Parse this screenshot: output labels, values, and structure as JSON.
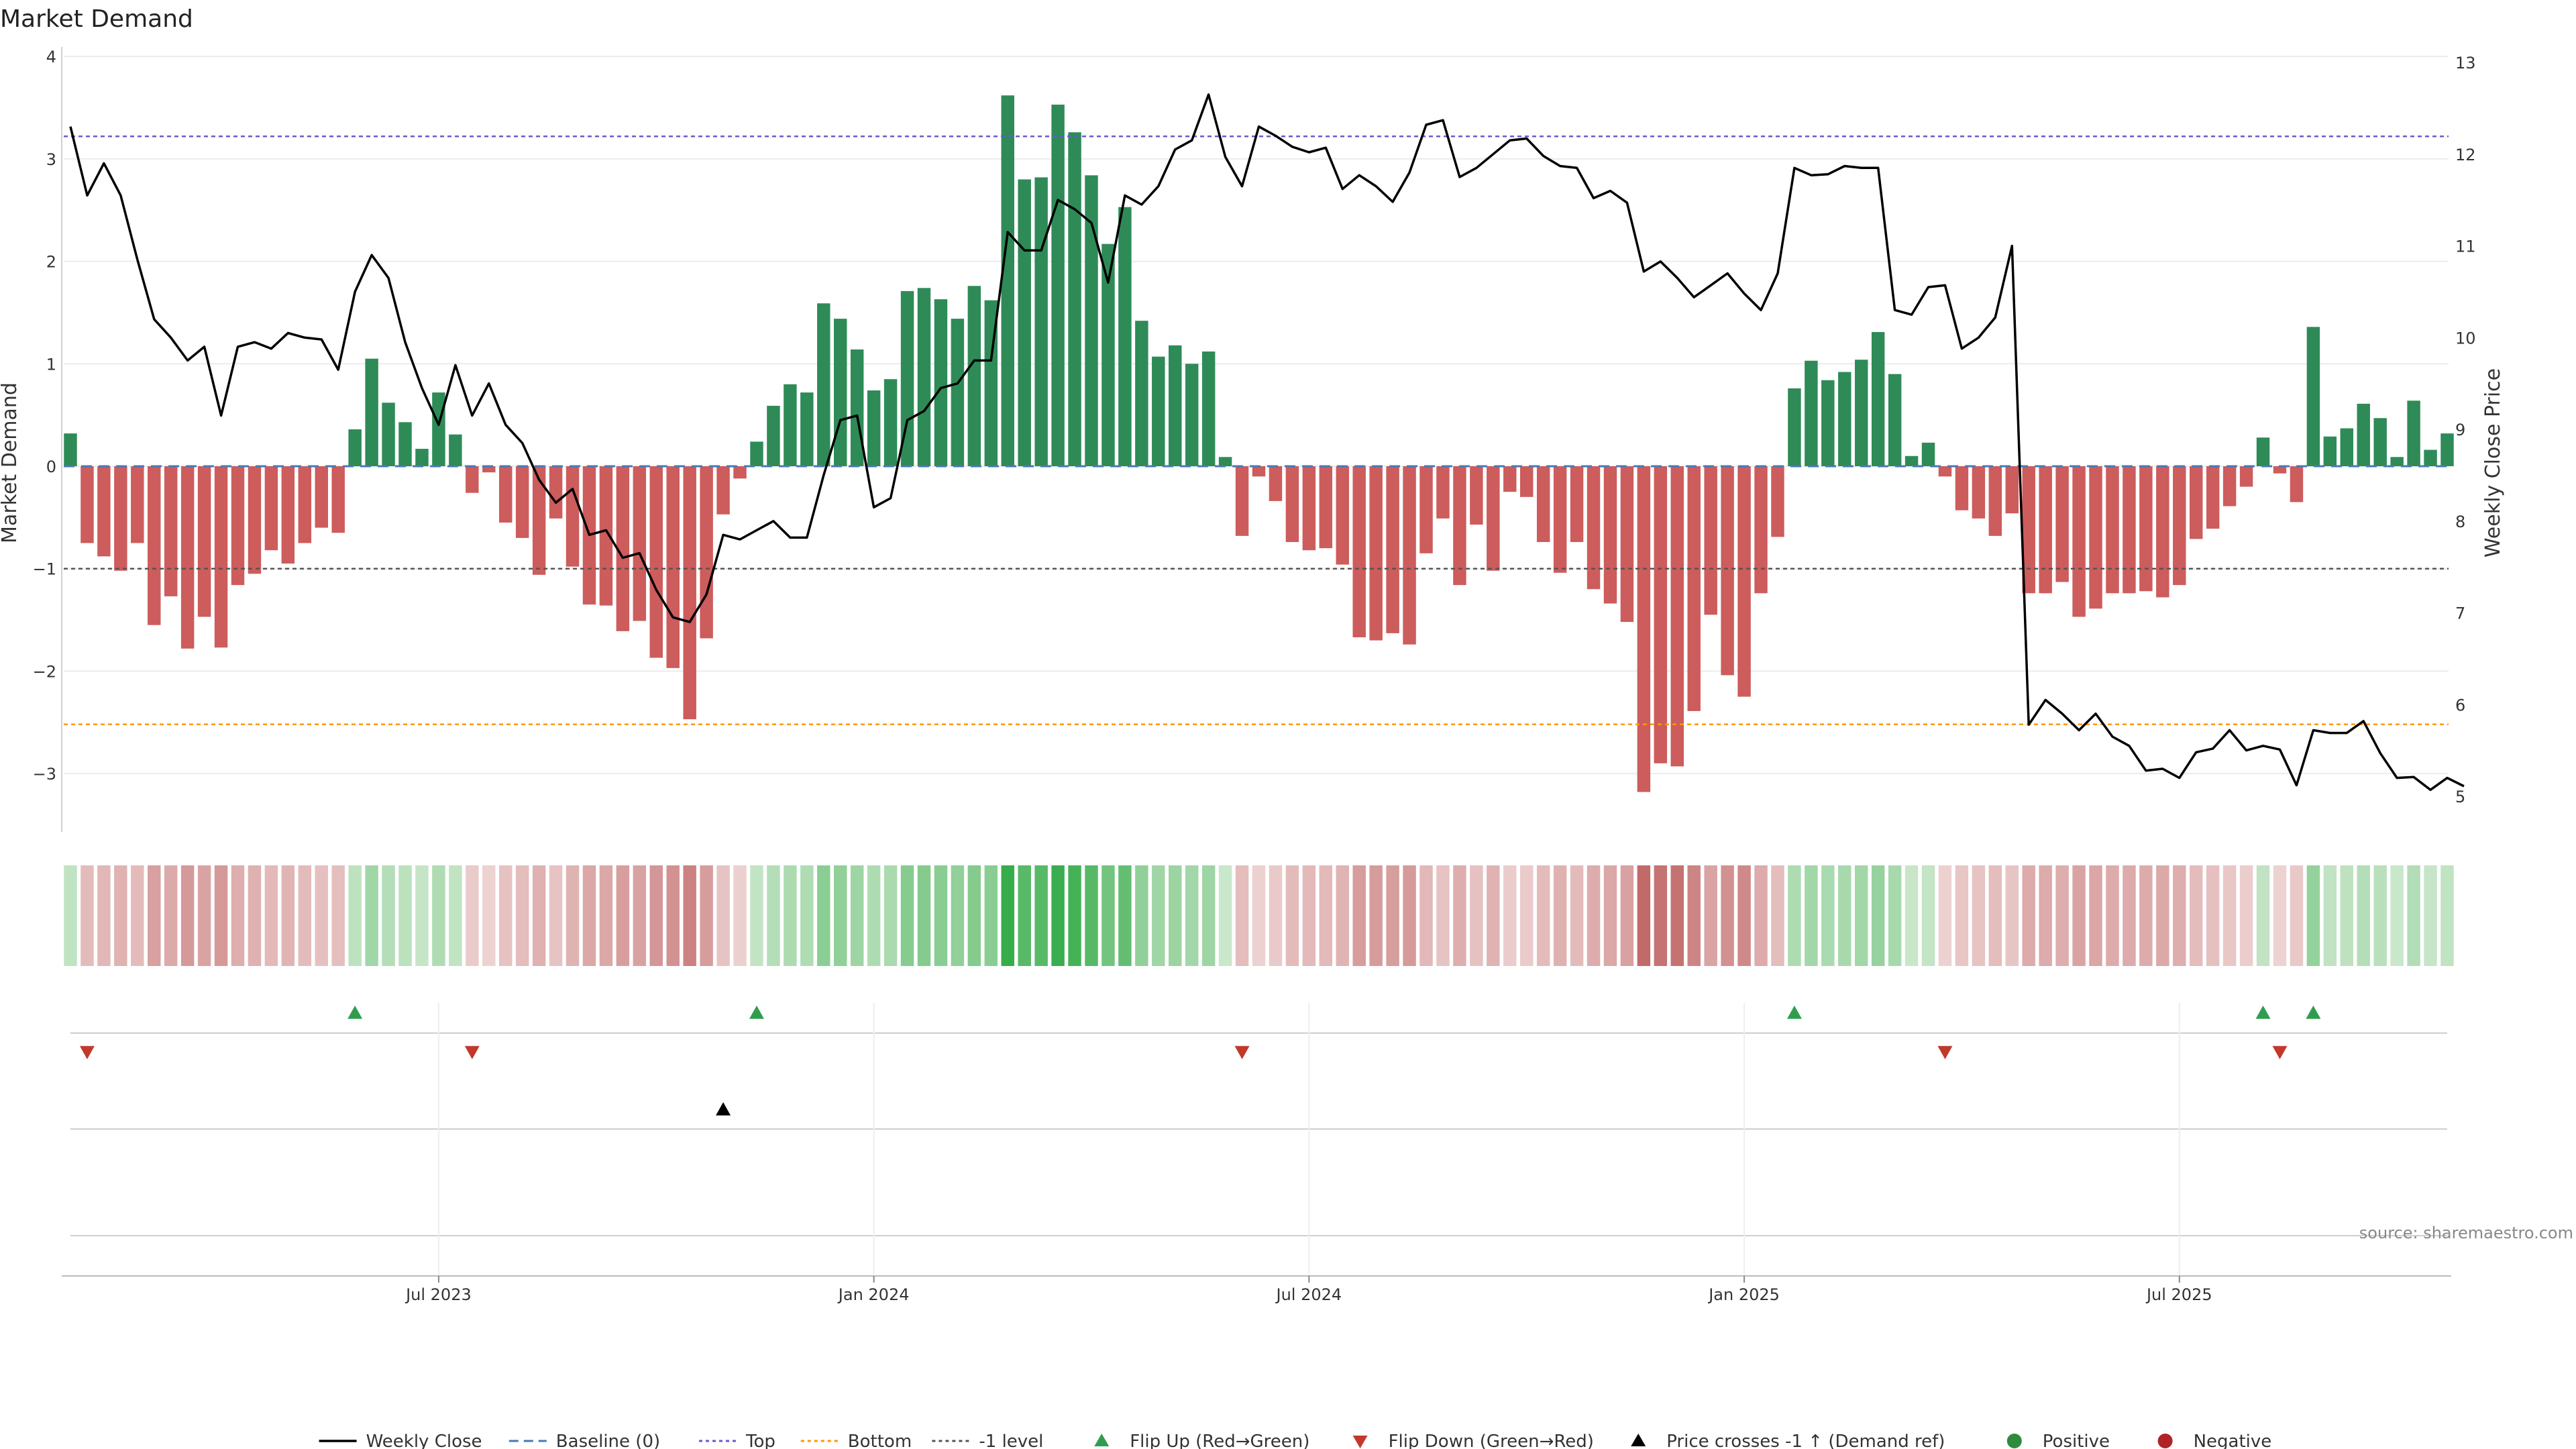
{
  "chart_data": {
    "type": "bar",
    "title": "Market Demand",
    "ylabel_left": "Market Demand",
    "ylabel_right": "Weekly Close Price",
    "ylim_left": [
      -3.6,
      4
    ],
    "yticks_left": [
      "4",
      "3",
      "2",
      "1",
      "0",
      "−1",
      "−2",
      "−3"
    ],
    "ylim_right": [
      4.7,
      13.2
    ],
    "yticks_right": [
      "13",
      "12",
      "11",
      "10",
      "9",
      "8",
      "7",
      "6",
      "5"
    ],
    "xticks": [
      {
        "label": "Jul 2023",
        "week": 22
      },
      {
        "label": "Jan 2024",
        "week": 48
      },
      {
        "label": "Jul 2024",
        "week": 74
      },
      {
        "label": "Jan 2025",
        "week": 100
      },
      {
        "label": "Jul 2025",
        "week": 126
      }
    ],
    "reference_lines": {
      "top": 3.22,
      "bottom": -2.52,
      "minus_one": -1,
      "baseline": 0
    },
    "demand": [
      0.32,
      -0.75,
      -0.88,
      -1.02,
      -0.75,
      -1.55,
      -1.27,
      -1.78,
      -1.47,
      -1.77,
      -1.16,
      -1.05,
      -0.82,
      -0.95,
      -0.75,
      -0.6,
      -0.65,
      0.36,
      1.05,
      0.62,
      0.43,
      0.17,
      0.72,
      0.31,
      -0.26,
      -0.06,
      -0.55,
      -0.7,
      -1.06,
      -0.51,
      -0.98,
      -1.35,
      -1.36,
      -1.61,
      -1.51,
      -1.87,
      -1.97,
      -2.47,
      -1.68,
      -0.47,
      -0.12,
      0.24,
      0.59,
      0.8,
      0.72,
      1.59,
      1.44,
      1.14,
      0.74,
      0.85,
      1.71,
      1.74,
      1.63,
      1.44,
      1.76,
      1.62,
      3.62,
      2.8,
      2.82,
      3.53,
      3.26,
      2.84,
      2.17,
      2.53,
      1.42,
      1.07,
      1.18,
      1.0,
      1.12,
      0.09,
      -0.68,
      -0.1,
      -0.34,
      -0.74,
      -0.82,
      -0.8,
      -0.96,
      -1.67,
      -1.7,
      -1.63,
      -1.74,
      -0.85,
      -0.51,
      -1.16,
      -0.57,
      -1.02,
      -0.25,
      -0.3,
      -0.74,
      -1.04,
      -0.74,
      -1.2,
      -1.34,
      -1.52,
      -3.18,
      -2.9,
      -2.93,
      -2.39,
      -1.45,
      -2.04,
      -2.25,
      -1.24,
      -0.69,
      0.76,
      1.03,
      0.84,
      0.92,
      1.04,
      1.31,
      0.9,
      0.1,
      0.23,
      -0.1,
      -0.43,
      -0.51,
      -0.68,
      -0.46,
      -1.24,
      -1.24,
      -1.13,
      -1.47,
      -1.39,
      -1.24,
      -1.24,
      -1.22,
      -1.28,
      -1.16,
      -0.71,
      -0.61,
      -0.39,
      -0.2,
      0.28,
      -0.07,
      -0.35,
      1.36,
      0.29,
      0.37,
      0.61,
      0.47,
      0.09,
      0.64,
      0.16,
      0.32
    ],
    "price": [
      12.3,
      11.55,
      11.9,
      11.55,
      10.85,
      10.2,
      10.0,
      9.75,
      9.9,
      9.15,
      9.9,
      9.95,
      9.88,
      10.05,
      10.0,
      9.98,
      9.65,
      10.5,
      10.9,
      10.65,
      9.95,
      9.45,
      9.05,
      9.7,
      9.15,
      9.5,
      9.05,
      8.85,
      8.45,
      8.2,
      8.35,
      7.85,
      7.9,
      7.6,
      7.65,
      7.25,
      6.95,
      6.9,
      7.2,
      7.85,
      7.8,
      7.9,
      8.0,
      7.82,
      7.82,
      8.5,
      9.1,
      9.15,
      8.15,
      8.25,
      9.1,
      9.2,
      9.45,
      9.5,
      9.75,
      9.75,
      11.15,
      10.95,
      10.95,
      11.5,
      11.4,
      11.25,
      10.6,
      11.55,
      11.45,
      11.65,
      12.05,
      12.15,
      12.65,
      11.97,
      11.65,
      12.3,
      12.2,
      12.08,
      12.02,
      12.07,
      11.62,
      11.77,
      11.65,
      11.48,
      11.8,
      12.32,
      12.37,
      11.75,
      11.85,
      12.0,
      12.15,
      12.17,
      11.98,
      11.87,
      11.85,
      11.52,
      11.6,
      11.47,
      10.72,
      10.83,
      10.65,
      10.44,
      10.57,
      10.7,
      10.48,
      10.3,
      10.7,
      11.85,
      11.77,
      11.78,
      11.87,
      11.85,
      11.85,
      10.3,
      10.25,
      10.55,
      10.57,
      9.88,
      10.0,
      10.22,
      11.0,
      5.78,
      6.05,
      5.9,
      5.72,
      5.9,
      5.65,
      5.55,
      5.28,
      5.3,
      5.2,
      5.48,
      5.52,
      5.72,
      5.5,
      5.55,
      5.51,
      5.12,
      5.72,
      5.69,
      5.69,
      5.82,
      5.47,
      5.2,
      5.21,
      5.07,
      5.2,
      5.11
    ],
    "flip_up_weeks": [
      17,
      41,
      103,
      131,
      134
    ],
    "flip_down_weeks": [
      1,
      24,
      70,
      112,
      132
    ],
    "price_cross_weeks": [
      39
    ],
    "source_text": "source: sharemaestro.com",
    "legend": [
      {
        "label": "Weekly Close",
        "kind": "line",
        "color": "#000000"
      },
      {
        "label": "Baseline (0)",
        "kind": "dash",
        "color": "#4a78b5"
      },
      {
        "label": "Top",
        "kind": "dot",
        "color": "#6a5acd"
      },
      {
        "label": "Bottom",
        "kind": "dot",
        "color": "#ff9900"
      },
      {
        "label": "-1 level",
        "kind": "dot",
        "color": "#555555"
      },
      {
        "label": "Flip Up (Red→Green)",
        "kind": "tri-up",
        "color": "#2e9e4e"
      },
      {
        "label": "Flip Down (Green→Red)",
        "kind": "tri-down",
        "color": "#c0392b"
      },
      {
        "label": "Price crosses -1 ↑ (Demand ref)",
        "kind": "tri-up",
        "color": "#000000"
      },
      {
        "label": "Positive",
        "kind": "circle",
        "color": "#2e8b3c"
      },
      {
        "label": "Negative",
        "kind": "circle",
        "color": "#b02428"
      }
    ],
    "colors": {
      "positive": "#2e8b57",
      "negative": "#cd5c5c",
      "price": "#000000"
    }
  }
}
